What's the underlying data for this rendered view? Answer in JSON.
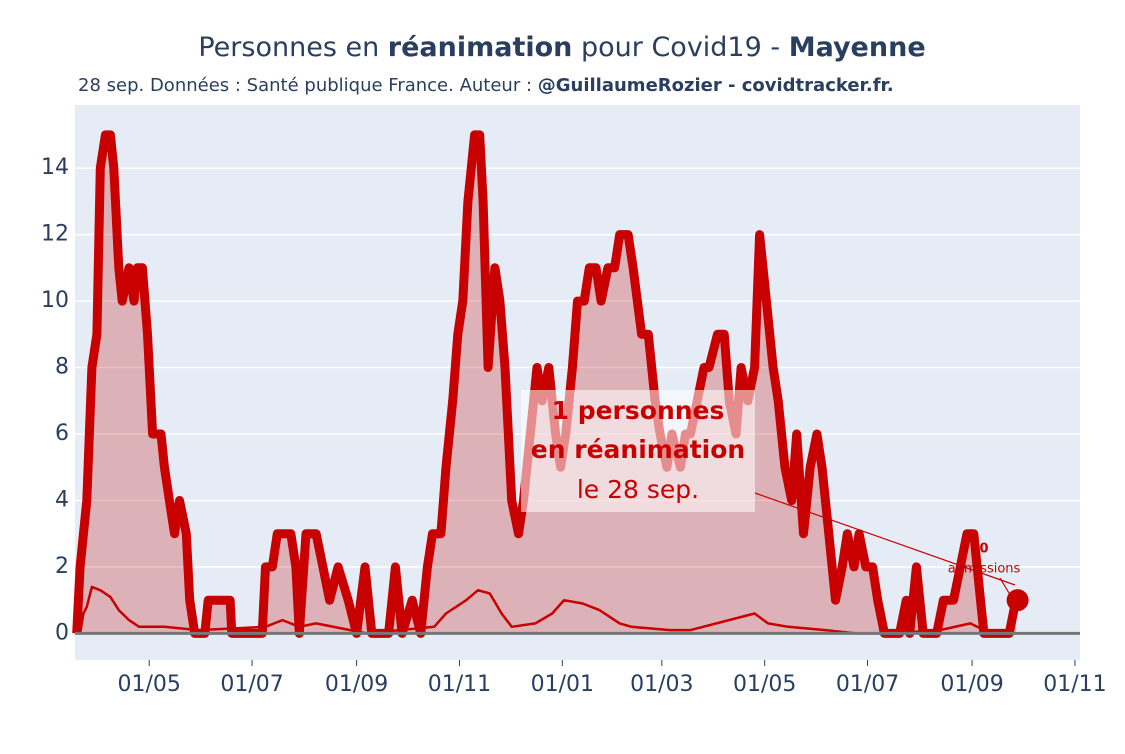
{
  "chart_data": {
    "type": "line",
    "title": [
      "Personnes en ",
      "réanimation",
      " pour Covid19 - ",
      "Mayenne"
    ],
    "subtitle": [
      "28 sep. Données : Santé publique France. Auteur : ",
      "@GuillaumeRozier - covidtracker.fr."
    ],
    "annotation": {
      "lines": [
        "1 personnes",
        "en réanimation",
        "le 28 sep."
      ],
      "admissions": [
        "0",
        "admissions"
      ]
    },
    "xlim": [
      17,
      613
    ],
    "ylim": [
      -0.8,
      15.9
    ],
    "xticks": [
      {
        "value": 61,
        "label": "01/05"
      },
      {
        "value": 122,
        "label": "01/07"
      },
      {
        "value": 184,
        "label": "01/09"
      },
      {
        "value": 245,
        "label": "01/11"
      },
      {
        "value": 306,
        "label": "01/01"
      },
      {
        "value": 365,
        "label": "01/03"
      },
      {
        "value": 426,
        "label": "01/05"
      },
      {
        "value": 487,
        "label": "01/07"
      },
      {
        "value": 549,
        "label": "01/09"
      },
      {
        "value": 610,
        "label": "01/11"
      }
    ],
    "yticks": [
      0,
      2,
      4,
      6,
      8,
      10,
      12,
      14
    ],
    "grid": true,
    "series": [
      {
        "color": "#c80000",
        "fill": true,
        "x": [
          18,
          20,
          24,
          27,
          30,
          32,
          35,
          38,
          40,
          43,
          45,
          49,
          52,
          54,
          57,
          60,
          63,
          68,
          70,
          73,
          76,
          79,
          83,
          85,
          88,
          94,
          96,
          109,
          110,
          128,
          130,
          134,
          137,
          145,
          148,
          150,
          154,
          160,
          164,
          168,
          173,
          179,
          184,
          189,
          193,
          203,
          207,
          211,
          217,
          222,
          226,
          229,
          234,
          237,
          241,
          244,
          247,
          250,
          254,
          257,
          259,
          262,
          266,
          269,
          272,
          276,
          280,
          283,
          287,
          291,
          294,
          298,
          302,
          305,
          308,
          312,
          315,
          319,
          322,
          326,
          329,
          333,
          337,
          340,
          345,
          348,
          353,
          357,
          361,
          364,
          368,
          371,
          376,
          379,
          382,
          386,
          390,
          393,
          398,
          402,
          405,
          409,
          412,
          416,
          420,
          423,
          427,
          431,
          434,
          438,
          442,
          445,
          449,
          453,
          457,
          460,
          464,
          468,
          472,
          475,
          479,
          482,
          486,
          490,
          493,
          497,
          506,
          510,
          512,
          516,
          520,
          528,
          532,
          538,
          542,
          546,
          550,
          554,
          556,
          571,
          575
        ],
        "values": [
          0,
          2,
          4,
          8,
          9,
          14,
          15,
          15,
          14,
          11,
          10,
          11,
          10,
          11,
          11,
          9,
          6,
          6,
          5,
          4,
          3,
          4,
          3,
          1,
          0,
          0,
          1,
          1,
          0,
          0,
          2,
          2,
          3,
          3,
          2,
          0,
          3,
          3,
          2,
          1,
          2,
          1,
          0,
          2,
          0,
          0,
          2,
          0,
          1,
          0,
          2,
          3,
          3,
          5,
          7,
          9,
          10,
          13,
          15,
          15,
          13,
          8,
          11,
          10,
          8,
          4,
          3,
          4,
          6,
          8,
          7,
          8,
          6,
          5,
          6,
          8,
          10,
          10,
          11,
          11,
          10,
          11,
          11,
          12,
          12,
          11,
          9,
          9,
          7,
          6,
          5,
          6,
          5,
          6,
          6,
          7,
          8,
          8,
          9,
          9,
          7,
          6,
          8,
          7,
          8,
          12,
          10,
          8,
          7,
          5,
          4,
          6,
          3,
          5,
          6,
          5,
          3,
          1,
          2,
          3,
          2,
          3,
          2,
          2,
          1,
          0,
          0,
          1,
          0,
          2,
          0,
          0,
          1,
          1,
          2,
          3,
          3,
          1,
          0,
          0,
          1
        ]
      },
      {
        "color": "#c80000",
        "thin": true,
        "x": [
          20,
          22,
          24,
          27,
          32,
          38,
          43,
          49,
          55,
          70,
          90,
          130,
          140,
          150,
          160,
          190,
          230,
          237,
          249,
          256,
          263,
          270,
          276,
          290,
          300,
          307,
          318,
          328,
          340,
          347,
          370,
          382,
          420,
          428,
          440,
          462,
          480,
          500,
          530,
          548,
          560,
          576
        ],
        "values": [
          0,
          0.6,
          0.8,
          1.4,
          1.3,
          1.1,
          0.7,
          0.4,
          0.2,
          0.2,
          0.1,
          0.2,
          0.4,
          0.2,
          0.3,
          0,
          0.2,
          0.6,
          1.0,
          1.3,
          1.2,
          0.6,
          0.2,
          0.3,
          0.6,
          1.0,
          0.9,
          0.7,
          0.3,
          0.2,
          0.1,
          0.1,
          0.6,
          0.3,
          0.2,
          0.1,
          0,
          0,
          0.1,
          0.3,
          0,
          0
        ]
      }
    ],
    "last_point": {
      "x": 576,
      "value": 1
    }
  }
}
